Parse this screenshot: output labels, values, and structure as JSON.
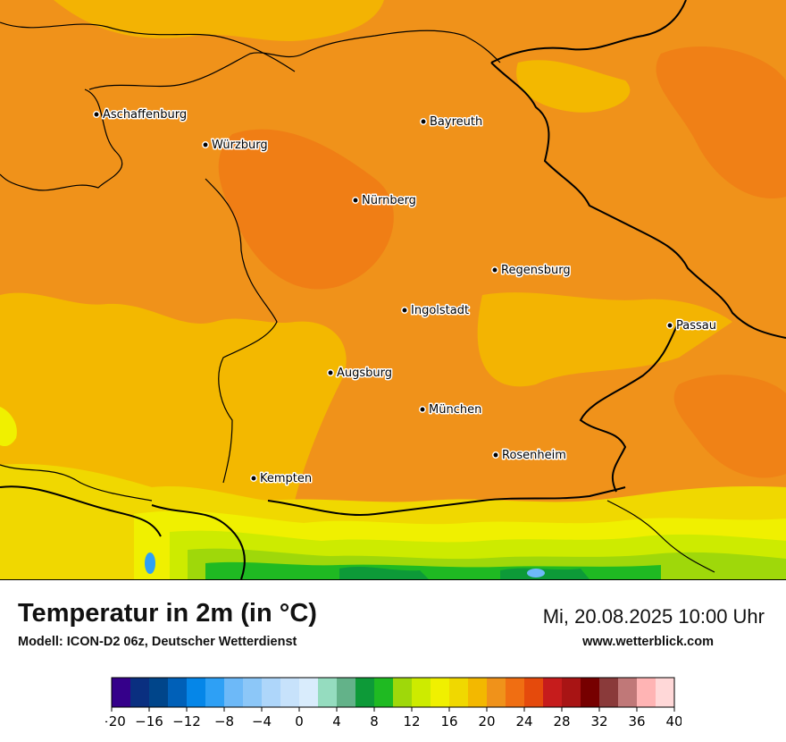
{
  "title": "Temperatur in 2m (in °C)",
  "model": "Modell: ICON-D2 06z, Deutscher Wetterdienst",
  "datetime": "Mi, 20.08.2025 10:00 Uhr",
  "website": "www.wetterblick.com",
  "cities": [
    {
      "name": "Aschaffenburg"
    },
    {
      "name": "Würzburg"
    },
    {
      "name": "Bayreuth"
    },
    {
      "name": "Nürnberg"
    },
    {
      "name": "Regensburg"
    },
    {
      "name": "Ingolstadt"
    },
    {
      "name": "Passau"
    },
    {
      "name": "Augsburg"
    },
    {
      "name": "München"
    },
    {
      "name": "Rosenheim"
    },
    {
      "name": "Kempten"
    }
  ],
  "colorscale": {
    "min": -20,
    "max": 40,
    "step": 2,
    "tick_labels": [
      "−20",
      "−16",
      "−12",
      "−8",
      "−4",
      "0",
      "4",
      "8",
      "12",
      "16",
      "20",
      "24",
      "28",
      "32",
      "36",
      "40"
    ],
    "colors": [
      "#35008a",
      "#0a2f80",
      "#00458a",
      "#0060b8",
      "#0586e8",
      "#2ea0f5",
      "#6db9f8",
      "#8cc7f8",
      "#aed6fa",
      "#c7e2fb",
      "#d9ecfc",
      "#95dcbf",
      "#63b289",
      "#0d9a38",
      "#1fba22",
      "#9fd80a",
      "#cdeb00",
      "#f0f000",
      "#f0d800",
      "#f3b800",
      "#f0921a",
      "#f06e12",
      "#e54a0c",
      "#c61c1c",
      "#a81414",
      "#760000",
      "#8a3a3a",
      "#c07878",
      "#ffb4b4",
      "#ffd8d8"
    ]
  }
}
